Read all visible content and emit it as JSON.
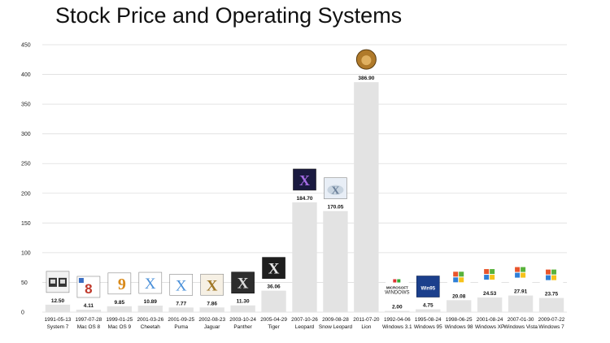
{
  "chart_data": {
    "type": "bar",
    "title": "Stock Price and Operating Systems",
    "xlabel": "",
    "ylabel": "",
    "ylim": [
      0,
      450
    ],
    "yticks": [
      0,
      50,
      100,
      150,
      200,
      250,
      300,
      350,
      400,
      450
    ],
    "grid": true,
    "colors": {
      "bar": "#e3e3e3",
      "grid": "#dedede",
      "text": "#111111"
    },
    "categories": [
      {
        "date": "1991-05-13",
        "name": "System 7",
        "value": 12.5,
        "label": "12.50",
        "icon": "system-7-box-icon"
      },
      {
        "date": "1997-07-28",
        "name": "Mac OS 8",
        "value": 4.11,
        "label": "4.11",
        "icon": "mac-os-8-box-icon"
      },
      {
        "date": "1999-01-25",
        "name": "Mac OS 9",
        "value": 9.85,
        "label": "9.85",
        "icon": "mac-os-9-box-icon"
      },
      {
        "date": "2001-03-26",
        "name": "Cheetah",
        "value": 10.89,
        "label": "10.89",
        "icon": "cheetah-box-icon"
      },
      {
        "date": "2001-09-25",
        "name": "Puma",
        "value": 7.77,
        "label": "7.77",
        "icon": "puma-box-icon"
      },
      {
        "date": "2002-08-23",
        "name": "Jaguar",
        "value": 7.86,
        "label": "7.86",
        "icon": "jaguar-box-icon"
      },
      {
        "date": "2003-10-24",
        "name": "Panther",
        "value": 11.3,
        "label": "11.30",
        "icon": "panther-box-icon"
      },
      {
        "date": "2005-04-29",
        "name": "Tiger",
        "value": 36.06,
        "label": "36.06",
        "icon": "tiger-box-icon"
      },
      {
        "date": "2007-10-26",
        "name": "Leopard",
        "value": 184.7,
        "label": "184.70",
        "icon": "leopard-box-icon"
      },
      {
        "date": "2009-08-28",
        "name": "Snow Leopard",
        "value": 170.05,
        "label": "170.05",
        "icon": "snow-leopard-box-icon"
      },
      {
        "date": "2011-07-20",
        "name": "Lion",
        "value": 386.9,
        "label": "386.90",
        "icon": "lion-badge-icon"
      },
      {
        "date": "1992-04-06",
        "name": "Windows 3.1",
        "value": 2.0,
        "label": "2.00",
        "icon": "windows-3-1-logo-icon"
      },
      {
        "date": "1995-08-24",
        "name": "Windows 95",
        "value": 4.75,
        "label": "4.75",
        "icon": "windows-95-box-icon"
      },
      {
        "date": "1998-06-25",
        "name": "Windows 98",
        "value": 20.08,
        "label": "20.08",
        "icon": "windows-98-logo-icon"
      },
      {
        "date": "2001-08-24",
        "name": "Windows XP",
        "value": 24.53,
        "label": "24.53",
        "icon": "windows-xp-logo-icon"
      },
      {
        "date": "2007-01-30",
        "name": "Windows Vista",
        "value": 27.91,
        "label": "27.91",
        "icon": "windows-vista-logo-icon"
      },
      {
        "date": "2009-07-22",
        "name": "Windows 7",
        "value": 23.75,
        "label": "23.75",
        "icon": "windows-7-orb-icon"
      }
    ]
  }
}
